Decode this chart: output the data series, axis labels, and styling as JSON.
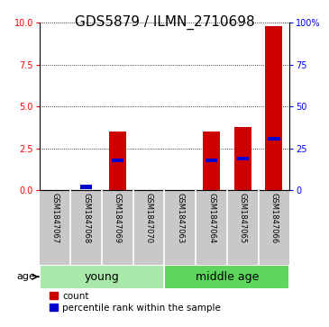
{
  "title": "GDS5879 / ILMN_2710698",
  "samples": [
    "GSM1847067",
    "GSM1847068",
    "GSM1847069",
    "GSM1847070",
    "GSM1847063",
    "GSM1847064",
    "GSM1847065",
    "GSM1847066"
  ],
  "counts": [
    0.0,
    0.0,
    3.5,
    0.0,
    0.0,
    3.5,
    3.8,
    9.8
  ],
  "percentiles": [
    0.0,
    2.0,
    18.0,
    0.0,
    0.0,
    18.0,
    19.0,
    31.0
  ],
  "groups": [
    {
      "label": "young",
      "indices": [
        0,
        1,
        2,
        3
      ],
      "color": "#90EE90"
    },
    {
      "label": "middle age",
      "indices": [
        4,
        5,
        6,
        7
      ],
      "color": "#5CD65C"
    }
  ],
  "left_ylim": [
    0,
    10
  ],
  "right_ylim": [
    0,
    100
  ],
  "left_yticks": [
    0,
    2.5,
    5,
    7.5,
    10
  ],
  "right_yticks": [
    0,
    25,
    50,
    75,
    100
  ],
  "right_yticklabels": [
    "0",
    "25",
    "50",
    "75",
    "100%"
  ],
  "bar_color": "#CC0000",
  "percentile_color": "#0000CC",
  "bar_width": 0.55,
  "age_label": "age",
  "legend_count_label": "count",
  "legend_percentile_label": "percentile rank within the sample",
  "grid_color": "black",
  "title_fontsize": 11,
  "tick_label_fontsize": 7,
  "group_label_fontsize": 9,
  "sample_label_fontsize": 6,
  "bg_color": "#C8C8C8",
  "plot_bg_color": "#FFFFFF",
  "group_young_color": "#A8E8A8",
  "group_middle_color": "#5CD65C"
}
